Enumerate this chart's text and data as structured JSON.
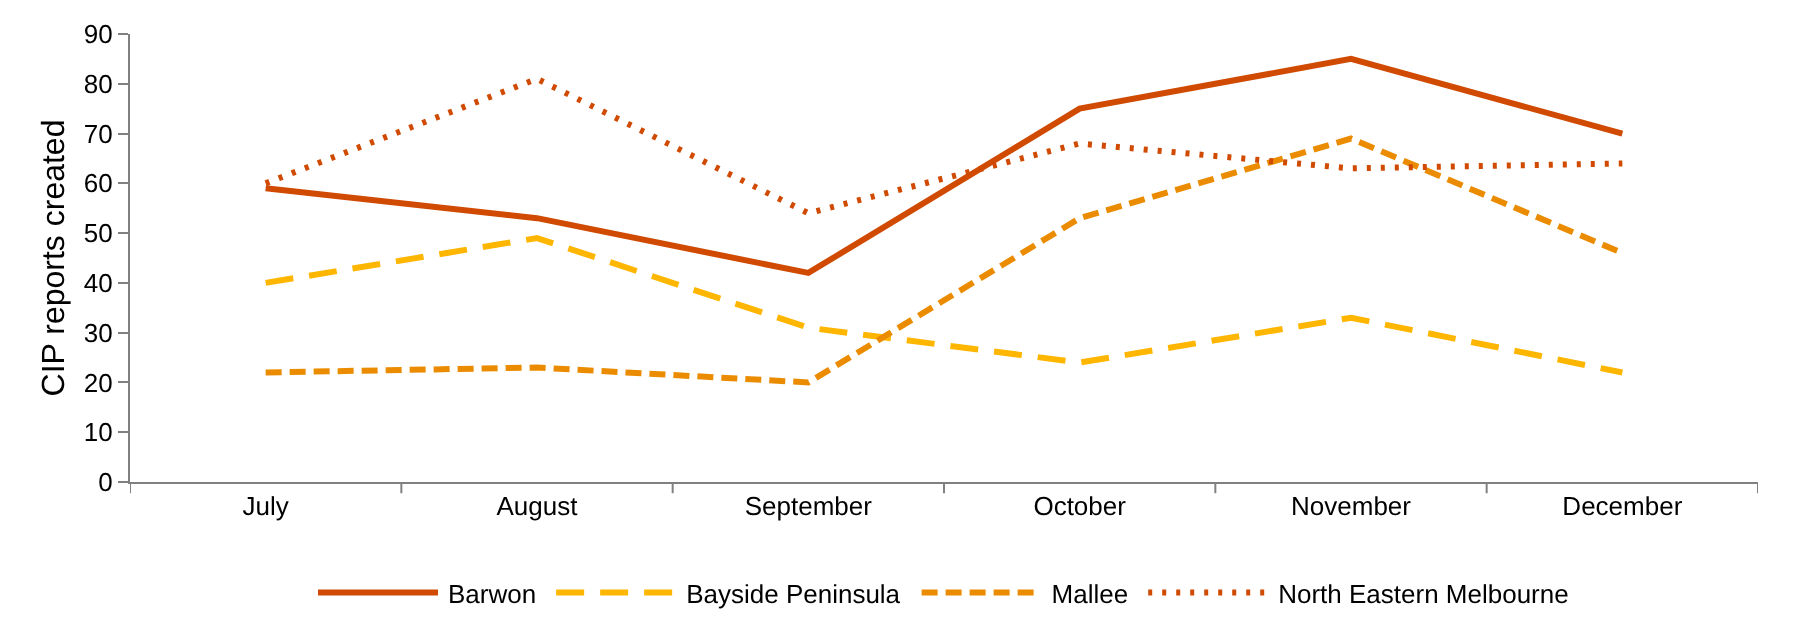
{
  "chart_data": {
    "type": "line",
    "ylabel": "CIP reports created",
    "categories": [
      "July",
      "August",
      "September",
      "October",
      "November",
      "December"
    ],
    "ylim": [
      0,
      90
    ],
    "yticks": [
      0,
      10,
      20,
      30,
      40,
      50,
      60,
      70,
      80,
      90
    ],
    "legend": "bottom",
    "marker": "none",
    "series": [
      {
        "name": "Barwon",
        "color": "#d04a02",
        "line_style": "solid",
        "values": [
          59,
          53,
          42,
          75,
          85,
          70
        ]
      },
      {
        "name": "Bayside Peninsula",
        "color": "#ffb600",
        "line_style": "dashed",
        "values": [
          40,
          49,
          31,
          24,
          33,
          22
        ]
      },
      {
        "name": "Mallee",
        "color": "#eb8c00",
        "line_style": "dashed",
        "values": [
          22,
          23,
          20,
          53,
          69,
          46
        ]
      },
      {
        "name": "North Eastern Melbourne",
        "color": "#d04a02",
        "line_style": "dotted",
        "values": [
          60,
          81,
          54,
          68,
          63,
          64
        ]
      }
    ]
  }
}
